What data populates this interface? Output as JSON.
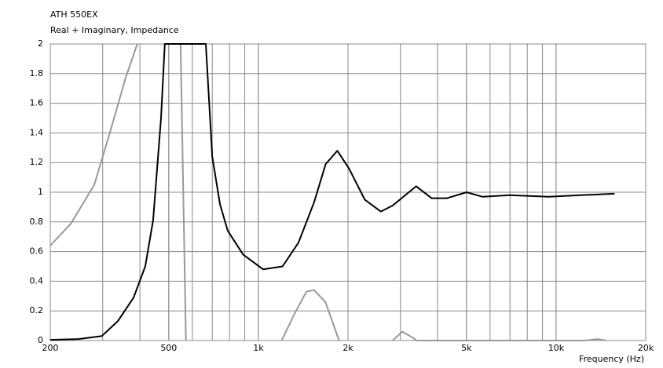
{
  "chart_data": {
    "type": "line",
    "title": "ATH 550EX",
    "subtitle": "Real + Imaginary, Impedance",
    "x_label": "Frequency  (Hz)",
    "x_scale": "log",
    "grid": true,
    "xlim": [
      200,
      20000
    ],
    "xticks": [
      200,
      500,
      {
        "value": 1000,
        "label": "1k"
      },
      {
        "value": 2000,
        "label": "2k"
      },
      {
        "value": 5000,
        "label": "5k"
      },
      {
        "value": 10000,
        "label": "10k"
      },
      {
        "value": 20000,
        "label": "20k"
      }
    ],
    "ylim": [
      0,
      2
    ],
    "yticks": [
      0,
      0.2,
      0.4,
      0.6,
      0.8,
      1,
      1.2,
      1.4,
      1.6,
      1.8,
      2
    ],
    "series": [
      {
        "color": "#000000",
        "x": [
          200,
          249,
          298,
          337,
          381,
          417,
          443,
          471,
          485,
          666,
          700,
          743,
          789,
          889,
          1038,
          1206,
          1363,
          1537,
          1683,
          1841,
          2016,
          2278,
          2577,
          2824,
          3388,
          3818,
          4301,
          5006,
          5648,
          6979,
          9454,
          12030,
          15710
        ],
        "values": [
          0.005,
          0.01,
          0.03,
          0.13,
          0.29,
          0.5,
          0.81,
          1.5,
          2,
          2,
          1.24,
          0.92,
          0.74,
          0.58,
          0.48,
          0.5,
          0.66,
          0.93,
          1.19,
          1.28,
          1.16,
          0.95,
          0.87,
          0.91,
          1.04,
          0.96,
          0.96,
          1.0,
          0.97,
          0.98,
          0.97,
          0.98,
          0.99
        ]
      },
      {
        "color": "#999999",
        "x": [
          200,
          235,
          281,
          317,
          358,
          392,
          470,
          548,
          571,
          900,
          1197,
          1322,
          1450,
          1537,
          1680,
          1867,
          2300,
          2824,
          3046,
          3298,
          3400,
          12500,
          13800,
          14700
        ],
        "values": [
          0.64,
          0.79,
          1.05,
          1.4,
          1.77,
          2,
          null,
          2,
          0,
          null,
          0,
          0.18,
          0.33,
          0.34,
          0.26,
          0,
          null,
          0,
          0.06,
          0.02,
          0,
          0,
          0.01,
          0
        ]
      }
    ]
  }
}
